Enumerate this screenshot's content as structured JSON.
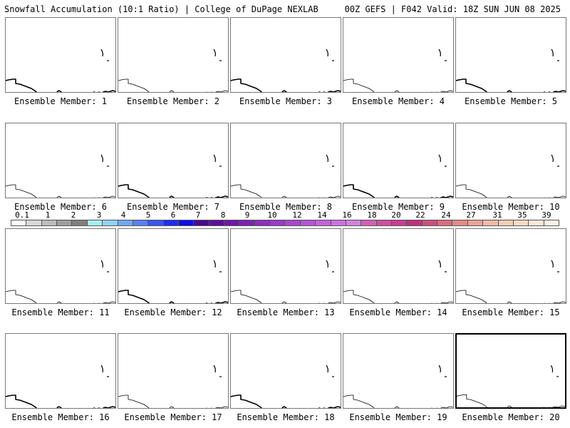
{
  "header": {
    "left": "Snowfall Accumulation (10:1 Ratio) | College of DuPage NEXLAB",
    "right": "00Z GEFS | F042 Valid: 18Z SUN JUN 08 2025"
  },
  "members": [
    {
      "label": "Ensemble Member: 1",
      "outline": "bold"
    },
    {
      "label": "Ensemble Member: 2",
      "outline": "thin"
    },
    {
      "label": "Ensemble Member: 3",
      "outline": "bold"
    },
    {
      "label": "Ensemble Member: 4",
      "outline": "thin"
    },
    {
      "label": "Ensemble Member: 5",
      "outline": "bold"
    },
    {
      "label": "Ensemble Member: 6",
      "outline": "thin"
    },
    {
      "label": "Ensemble Member: 7",
      "outline": "bold"
    },
    {
      "label": "Ensemble Member: 8",
      "outline": "thin"
    },
    {
      "label": "Ensemble Member: 9",
      "outline": "bold"
    },
    {
      "label": "Ensemble Member: 10",
      "outline": "thin"
    },
    {
      "label": "Ensemble Member: 11",
      "outline": "thin"
    },
    {
      "label": "Ensemble Member: 12",
      "outline": "bold"
    },
    {
      "label": "Ensemble Member: 13",
      "outline": "thin"
    },
    {
      "label": "Ensemble Member: 14",
      "outline": "thin"
    },
    {
      "label": "Ensemble Member: 15",
      "outline": "thin"
    },
    {
      "label": "Ensemble Member: 16",
      "outline": "bold"
    },
    {
      "label": "Ensemble Member: 17",
      "outline": "thin"
    },
    {
      "label": "Ensemble Member: 18",
      "outline": "bold"
    },
    {
      "label": "Ensemble Member: 19",
      "outline": "thin"
    },
    {
      "label": "Ensemble Member: 20",
      "outline": "thin",
      "selected": true
    }
  ],
  "colorbar": {
    "colors": [
      "#ffffff",
      "#d9d9d9",
      "#bdbdbd",
      "#9e9e9e",
      "#7f7f7f",
      "#a6f0f0",
      "#8fd3f5",
      "#6fa8f5",
      "#5a7ff5",
      "#3a55f5",
      "#1e2ef5",
      "#0d0df0",
      "#4a0a8c",
      "#5c0f9a",
      "#6e17a8",
      "#7d22b4",
      "#8c2dbf",
      "#9a3ac8",
      "#a847d0",
      "#b555d6",
      "#c264da",
      "#cc73dd",
      "#d482dc",
      "#d45fb7",
      "#cf4ea3",
      "#c93d90",
      "#c2307d",
      "#cf4f7c",
      "#da6e80",
      "#e38a8a",
      "#eca496",
      "#f2bba5",
      "#f6cdb5",
      "#f9dcc6",
      "#fbe8d6",
      "#fdf2e6"
    ],
    "ticks": [
      "0.1",
      "1",
      "2",
      "3",
      "4",
      "5",
      "6",
      "7",
      "8",
      "9",
      "10",
      "12",
      "14",
      "16",
      "18",
      "20",
      "22",
      "24",
      "27",
      "31",
      "35",
      "39"
    ]
  }
}
